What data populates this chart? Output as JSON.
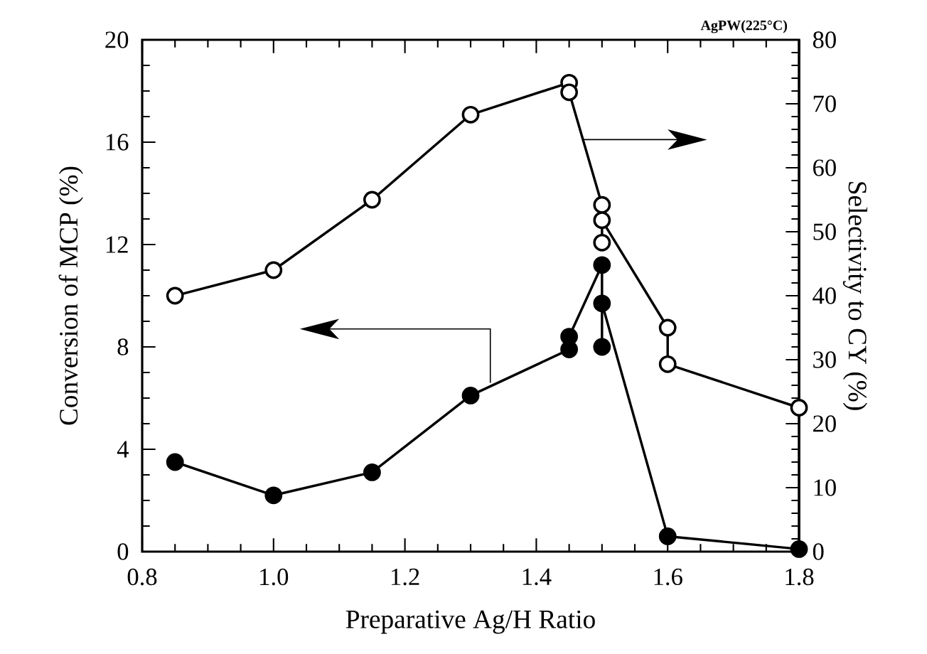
{
  "chart_data": {
    "type": "line",
    "xlabel": "Preparative Ag/H Ratio",
    "ylabel": "Conversion of MCP (%)",
    "y2label": "Selectivity to CY (%)",
    "annotations": [
      "AgPW(225°C)"
    ],
    "xlim": [
      0.8,
      1.8
    ],
    "xticks": [
      {
        "value": 0.8,
        "label": "0.8"
      },
      {
        "value": 1.0,
        "label": "1.0"
      },
      {
        "value": 1.2,
        "label": "1.2"
      },
      {
        "value": 1.4,
        "label": "1.4"
      },
      {
        "value": 1.6,
        "label": "1.6"
      },
      {
        "value": 1.8,
        "label": "1.8"
      }
    ],
    "ylim": [
      0,
      20
    ],
    "yticks": [
      0,
      4,
      8,
      12,
      16,
      20
    ],
    "y2lim": [
      0,
      80
    ],
    "y2ticks": [
      0,
      10,
      20,
      30,
      40,
      50,
      60,
      70,
      80
    ],
    "marker": "circle",
    "series": [
      {
        "color": "#000000",
        "x": [
          0.85,
          1.0,
          1.15,
          1.3,
          1.45,
          1.45,
          1.5,
          1.5,
          1.5,
          1.6,
          1.8
        ],
        "values": [
          3.5,
          2.2,
          3.1,
          6.1,
          7.9,
          8.4,
          11.2,
          8.0,
          9.7,
          0.6,
          0.1
        ]
      },
      {
        "color": "#000000",
        "axis": "y2",
        "x": [
          0.85,
          1.0,
          1.15,
          1.3,
          1.45,
          1.45,
          1.5,
          1.5,
          1.5,
          1.6,
          1.6,
          1.8
        ],
        "values": [
          40,
          44,
          55,
          68.3,
          73.3,
          71.8,
          54.2,
          48.3,
          51.8,
          35,
          29.3,
          22.5
        ]
      }
    ]
  }
}
